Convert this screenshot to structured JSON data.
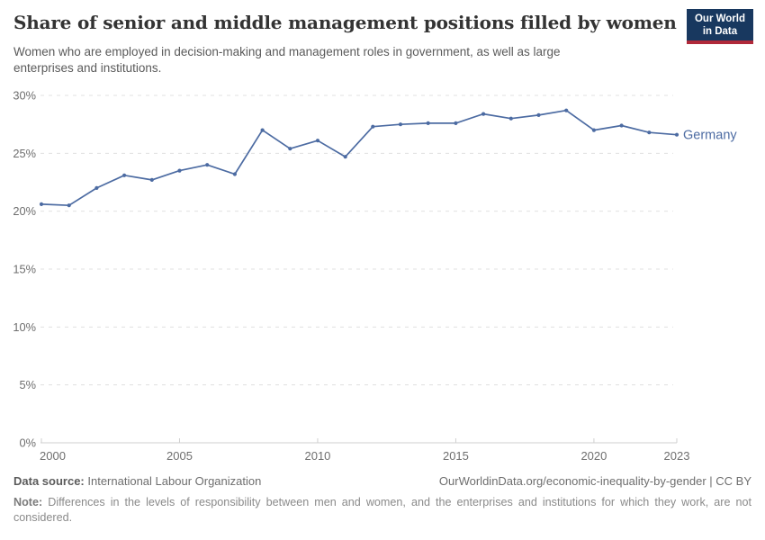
{
  "header": {
    "title": "Share of senior and middle management positions filled by women",
    "subtitle": "Women who are employed in decision-making and management roles in government, as well as large enterprises and institutions.",
    "logo": {
      "line1": "Our World",
      "line2": "in Data",
      "bg_color": "#18385f",
      "accent_color": "#b0293a"
    }
  },
  "chart_data": {
    "type": "line",
    "title": "Share of senior and middle management positions filled by women",
    "subtitle": "Women who are employed in decision-making and management roles in government, as well as large enterprises and institutions.",
    "x": [
      2000,
      2001,
      2002,
      2003,
      2004,
      2005,
      2006,
      2007,
      2008,
      2009,
      2010,
      2011,
      2012,
      2013,
      2014,
      2015,
      2016,
      2017,
      2018,
      2019,
      2020,
      2021,
      2022,
      2023
    ],
    "series": [
      {
        "name": "Germany",
        "color": "#4c6ba2",
        "values": [
          20.6,
          20.5,
          22.0,
          23.1,
          22.7,
          23.5,
          24.0,
          23.2,
          27.0,
          25.4,
          26.1,
          24.7,
          27.3,
          27.5,
          27.6,
          27.6,
          28.4,
          28.0,
          28.3,
          28.7,
          27.0,
          27.4,
          26.8,
          26.6
        ]
      }
    ],
    "xlabel": "",
    "ylabel": "",
    "ylim": [
      0,
      30
    ],
    "yticks": [
      0,
      5,
      10,
      15,
      20,
      25,
      30
    ],
    "ytick_suffix": "%",
    "xticks": [
      2000,
      2005,
      2010,
      2015,
      2020,
      2023
    ],
    "grid": "horizontal-dashed",
    "legend": "line-end-label",
    "colors": {
      "grid": "#e0e0e0",
      "axis": "#cfcfcf",
      "tick_text": "#6e6e6e"
    }
  },
  "footer": {
    "datasource_label": "Data source:",
    "datasource_value": "International Labour Organization",
    "attribution": "OurWorldinData.org/economic-inequality-by-gender | CC BY",
    "note_label": "Note:",
    "note_text": "Differences in the levels of responsibility between men and women, and the enterprises and institutions for which they work, are not considered."
  }
}
